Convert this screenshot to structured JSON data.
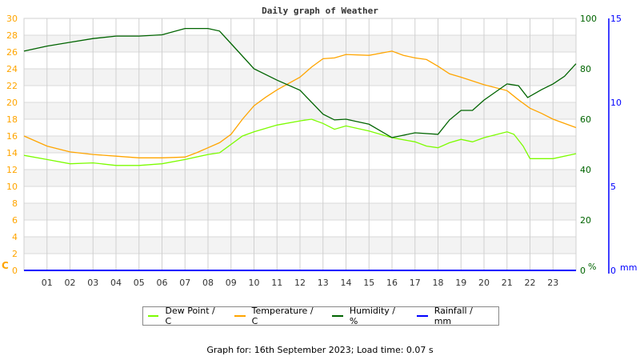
{
  "chart_data": {
    "type": "line",
    "title": "Daily graph of Weather",
    "x_ticks": [
      "01",
      "02",
      "03",
      "04",
      "05",
      "06",
      "07",
      "08",
      "09",
      "10",
      "11",
      "12",
      "13",
      "14",
      "15",
      "16",
      "17",
      "18",
      "19",
      "20",
      "21",
      "22",
      "23"
    ],
    "x_range_hours": [
      0,
      24
    ],
    "grid": true,
    "left_axis": {
      "unit": "C",
      "range": [
        0,
        30
      ],
      "ticks": [
        0,
        2,
        4,
        6,
        8,
        10,
        12,
        14,
        16,
        18,
        20,
        22,
        24,
        26,
        28,
        30
      ],
      "color": "#FFA500"
    },
    "humidity_axis": {
      "unit": "%",
      "range": [
        0,
        100
      ],
      "ticks": [
        0,
        20,
        40,
        60,
        80,
        100
      ],
      "color": "#006400"
    },
    "rain_axis": {
      "unit": "mm",
      "range": [
        0,
        15
      ],
      "ticks": [
        0,
        5,
        10,
        15
      ],
      "color": "#0000FF"
    },
    "legend_position": "bottom",
    "series": [
      {
        "name": "Dew Point / C",
        "color": "#7CFC00",
        "axis": "left",
        "points": [
          [
            0,
            13.7
          ],
          [
            1,
            13.2
          ],
          [
            2,
            12.7
          ],
          [
            3,
            12.8
          ],
          [
            4,
            12.5
          ],
          [
            5,
            12.5
          ],
          [
            6,
            12.7
          ],
          [
            7,
            13.2
          ],
          [
            8,
            13.8
          ],
          [
            8.5,
            14.0
          ],
          [
            9,
            15.0
          ],
          [
            9.5,
            16.0
          ],
          [
            10,
            16.5
          ],
          [
            11,
            17.3
          ],
          [
            12,
            17.8
          ],
          [
            12.5,
            18.0
          ],
          [
            13,
            17.5
          ],
          [
            13.5,
            16.8
          ],
          [
            14,
            17.2
          ],
          [
            15,
            16.6
          ],
          [
            16,
            15.8
          ],
          [
            17,
            15.3
          ],
          [
            17.5,
            14.8
          ],
          [
            18,
            14.6
          ],
          [
            18.5,
            15.2
          ],
          [
            19,
            15.6
          ],
          [
            19.5,
            15.3
          ],
          [
            20,
            15.8
          ],
          [
            21,
            16.5
          ],
          [
            21.3,
            16.2
          ],
          [
            21.7,
            14.8
          ],
          [
            22,
            13.3
          ],
          [
            22.5,
            13.3
          ],
          [
            23,
            13.3
          ],
          [
            24,
            13.9
          ]
        ]
      },
      {
        "name": "Temperature / C",
        "color": "#FFA500",
        "axis": "left",
        "points": [
          [
            0,
            16.0
          ],
          [
            1,
            14.8
          ],
          [
            2,
            14.1
          ],
          [
            3,
            13.8
          ],
          [
            4,
            13.6
          ],
          [
            5,
            13.4
          ],
          [
            6,
            13.4
          ],
          [
            7,
            13.5
          ],
          [
            7.5,
            14.0
          ],
          [
            8,
            14.6
          ],
          [
            8.5,
            15.2
          ],
          [
            9,
            16.2
          ],
          [
            9.5,
            18.0
          ],
          [
            10,
            19.6
          ],
          [
            10.5,
            20.6
          ],
          [
            11,
            21.5
          ],
          [
            12,
            23.0
          ],
          [
            12.5,
            24.2
          ],
          [
            13,
            25.2
          ],
          [
            13.5,
            25.3
          ],
          [
            14,
            25.7
          ],
          [
            15,
            25.6
          ],
          [
            16,
            26.1
          ],
          [
            16.5,
            25.6
          ],
          [
            17,
            25.3
          ],
          [
            17.5,
            25.1
          ],
          [
            18,
            24.3
          ],
          [
            18.5,
            23.4
          ],
          [
            19,
            23.0
          ],
          [
            20,
            22.1
          ],
          [
            21,
            21.4
          ],
          [
            21.5,
            20.3
          ],
          [
            22,
            19.3
          ],
          [
            22.5,
            18.7
          ],
          [
            23,
            18.0
          ],
          [
            24,
            17.0
          ]
        ]
      },
      {
        "name": "Humidity / %",
        "color": "#006400",
        "axis": "humidity",
        "points": [
          [
            0,
            87
          ],
          [
            0.5,
            88
          ],
          [
            1,
            89
          ],
          [
            2,
            90.5
          ],
          [
            3,
            92
          ],
          [
            4,
            93
          ],
          [
            5,
            93
          ],
          [
            6,
            93.5
          ],
          [
            7,
            96
          ],
          [
            8,
            96
          ],
          [
            8.5,
            95
          ],
          [
            9,
            90
          ],
          [
            10,
            80
          ],
          [
            11,
            75.5
          ],
          [
            12,
            71.5
          ],
          [
            13,
            62
          ],
          [
            13.5,
            59.7
          ],
          [
            14,
            60
          ],
          [
            15,
            58
          ],
          [
            16,
            52.7
          ],
          [
            17,
            54.6
          ],
          [
            18,
            54
          ],
          [
            18.5,
            59.7
          ],
          [
            19,
            63.5
          ],
          [
            19.5,
            63.5
          ],
          [
            20,
            67.6
          ],
          [
            21,
            74
          ],
          [
            21.5,
            73.3
          ],
          [
            21.9,
            68.6
          ],
          [
            22.5,
            71.7
          ],
          [
            23,
            74
          ],
          [
            23.5,
            77
          ],
          [
            24,
            82
          ]
        ]
      },
      {
        "name": "Rainfall / mm",
        "color": "#0000FF",
        "axis": "rain",
        "points": [
          [
            0,
            0
          ],
          [
            24,
            0
          ]
        ]
      }
    ]
  },
  "footer": "Graph for: 16th September 2023; Load time: 0.07 s"
}
